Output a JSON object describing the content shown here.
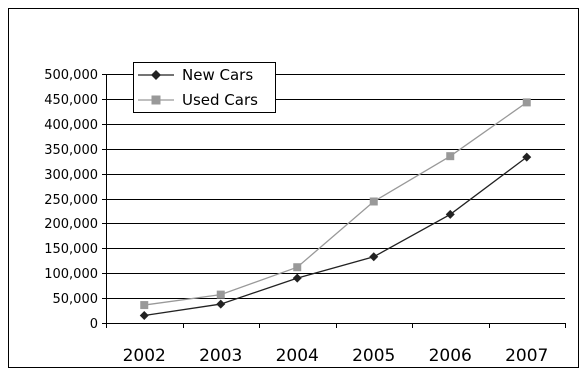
{
  "chart_data": {
    "type": "line",
    "categories": [
      "2002",
      "2003",
      "2004",
      "2005",
      "2006",
      "2007"
    ],
    "y_tick_labels": [
      "0",
      "50,000",
      "100,000",
      "150,000",
      "200,000",
      "250,000",
      "300,000",
      "350,000",
      "400,000",
      "450,000",
      "500,000"
    ],
    "ylim": [
      0,
      500000
    ],
    "grid": true,
    "legend_position": "top-left",
    "series": [
      {
        "name": "New Cars",
        "marker": "diamond",
        "color": "#222222",
        "values": [
          15000,
          38000,
          90000,
          133000,
          218000,
          333000
        ]
      },
      {
        "name": "Used Cars",
        "marker": "square",
        "color": "#999999",
        "values": [
          36000,
          57000,
          112000,
          244000,
          335000,
          443000
        ]
      }
    ]
  }
}
